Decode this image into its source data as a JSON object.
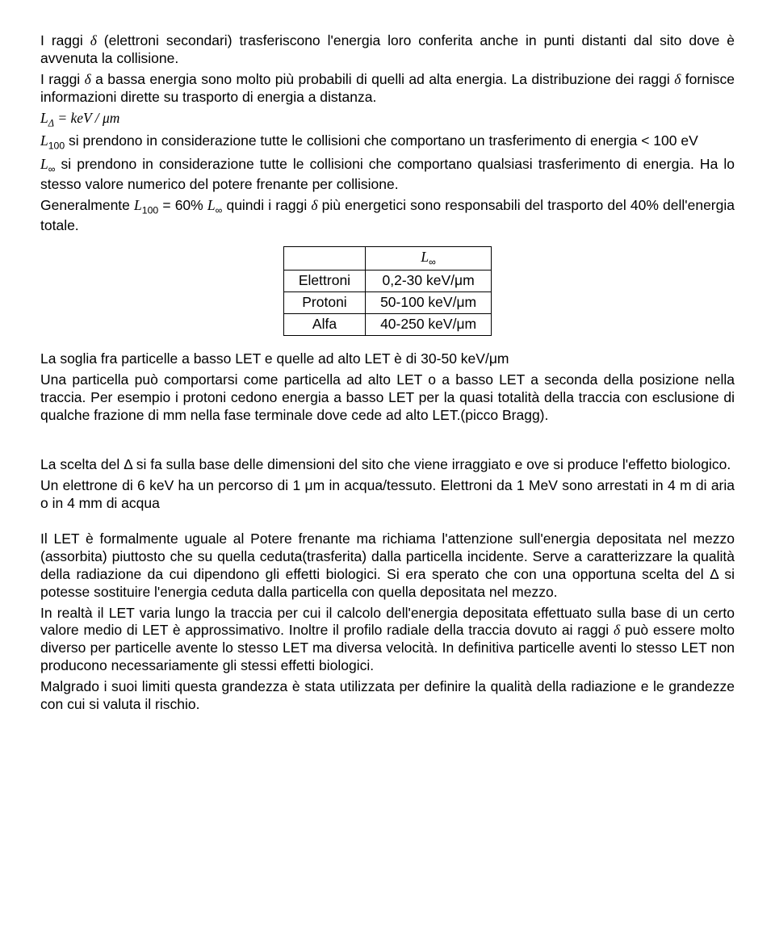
{
  "p1a": "I raggi ",
  "p1sym1": "δ",
  "p1b": " (elettroni secondari) trasferiscono l'energia loro conferita anche in punti distanti dal sito dove è avvenuta la collisione.",
  "p2a": "I raggi ",
  "p2sym1": "δ",
  "p2b": " a bassa energia sono molto più probabili di quelli ad alta energia. La distribuzione dei raggi ",
  "p2sym2": "δ",
  "p2c": " fornisce informazioni dirette su trasporto di energia a distanza.",
  "eq1_L": "L",
  "eq1_sub": "Δ",
  "eq1_rest": " = keV / μm",
  "p3_L": "L",
  "p3_sub1": "100",
  "p3a": " si prendono in considerazione tutte le collisioni  che comportano un trasferimento di energia < 100 eV",
  "p4_L": "L",
  "p4_sub": "∞",
  "p4a": " si prendono in considerazione tutte le collisioni che comportano qualsiasi trasferimento di energia. Ha lo stesso valore numerico del potere frenante per collisione.",
  "p5a": " Generalmente ",
  "p5_L1": "L",
  "p5_sub1": "100",
  "p5b": " = 60% ",
  "p5_L2": "L",
  "p5_sub2": "∞",
  "p5c": "  quindi i raggi ",
  "p5sym": "δ",
  "p5d": "  più energetici sono responsabili del trasporto del 40% dell'energia totale.",
  "table": {
    "header_L": "L",
    "header_sub": "∞",
    "rows": [
      {
        "particle": "Elettroni",
        "value": "0,2-30  keV/μm"
      },
      {
        "particle": "Protoni",
        "value": "50-100 keV/μm"
      },
      {
        "particle": "Alfa",
        "value": "40-250 keV/μm"
      }
    ]
  },
  "p6": "La soglia  fra particelle  a basso LET e  quelle ad alto LET  è  di  30-50 keV/μm",
  "p7": "Una particella può comportarsi come particella ad alto LET o a basso LET a seconda della posizione nella traccia. Per esempio i protoni cedono energia a basso LET  per la quasi totalità della traccia  con esclusione di qualche frazione di mm nella fase terminale dove cede ad alto LET.(picco Bragg).",
  "p8": "La scelta del Δ si fa sulla base delle dimensioni del sito che viene irraggiato e ove si produce l'effetto biologico.",
  "p9": "Un  elettrone di 6 keV ha un percorso di 1 μm in acqua/tessuto. Elettroni da 1 MeV sono arrestati in  4 m di aria o in 4 mm di acqua",
  "p10": "Il LET è formalmente uguale al Potere frenante ma richiama l'attenzione sull'energia depositata nel mezzo (assorbita)  piuttosto che su quella ceduta(trasferita) dalla particella incidente. Serve a caratterizzare la qualità della radiazione da cui dipendono gli effetti biologici. Si era sperato che con una opportuna scelta del Δ si potesse sostituire l'energia ceduta dalla particella con quella depositata nel mezzo.",
  "p11a": "In realtà il LET varia lungo la traccia per cui il calcolo dell'energia depositata effettuato sulla base di un certo valore medio di LET è approssimativo. Inoltre il profilo radiale della traccia dovuto ai raggi ",
  "p11sym": "δ",
  "p11b": "  può essere molto diverso per particelle avente lo stesso  LET ma diversa velocità. In definitiva particelle aventi lo stesso LET non producono necessariamente gli stessi effetti biologici.",
  "p12": "Malgrado i suoi limiti questa grandezza è stata utilizzata per definire la qualità della radiazione e le grandezze con cui si valuta il rischio."
}
